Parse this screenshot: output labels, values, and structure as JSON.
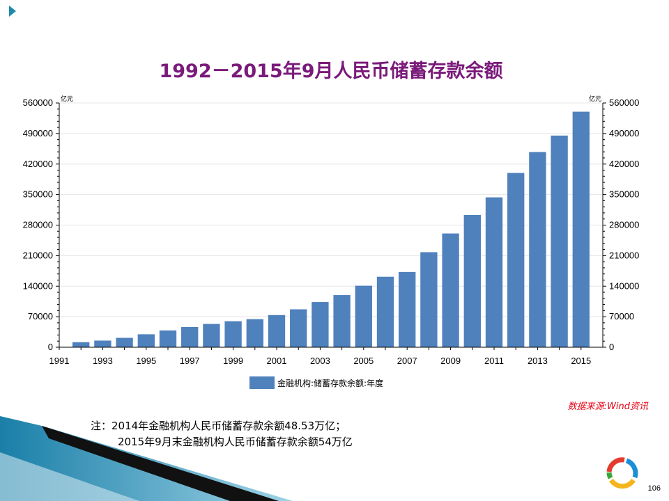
{
  "slide": {
    "title": "1992－2015年9月人民币储蓄存款余额",
    "source": "数据来源:Wind资讯",
    "note_line1": "注：2014年金融机构人民币储蓄存款余额48.53万亿；",
    "note_line2": "2015年9月末金融机构人民币储蓄存款余额54万亿",
    "page_number": "106",
    "colors": {
      "title": "#7a1a7a",
      "bar": "#4f81bd",
      "source": "#e60012"
    }
  },
  "chart_data": {
    "type": "bar",
    "title": "1992－2015年9月人民币储蓄存款余额",
    "categories": [
      "1992",
      "1993",
      "1994",
      "1995",
      "1996",
      "1997",
      "1998",
      "1999",
      "2000",
      "2001",
      "2002",
      "2003",
      "2004",
      "2005",
      "2006",
      "2007",
      "2008",
      "2009",
      "2010",
      "2011",
      "2012",
      "2013",
      "2014",
      "2015"
    ],
    "x_tick_labels": [
      "1991",
      "1993",
      "1995",
      "1997",
      "1999",
      "2001",
      "2003",
      "2005",
      "2007",
      "2009",
      "2011",
      "2013",
      "2015"
    ],
    "series": [
      {
        "name": "金融机构:储蓄存款余额:年度",
        "values": [
          11545,
          15204,
          21519,
          29662,
          38521,
          46280,
          53407,
          59622,
          64332,
          73762,
          86911,
          103618,
          119555,
          141051,
          161587,
          172534,
          217885,
          260772,
          303302,
          343636,
          399551,
          447602,
          485261,
          540000
        ]
      }
    ],
    "ylim": [
      0,
      560000
    ],
    "y_ticks": [
      "0",
      "70000",
      "140000",
      "210000",
      "280000",
      "350000",
      "420000",
      "490000",
      "560000"
    ],
    "y_unit_left": "亿元",
    "y_unit_right": "亿元",
    "grid": true,
    "legend_position": "bottom"
  }
}
